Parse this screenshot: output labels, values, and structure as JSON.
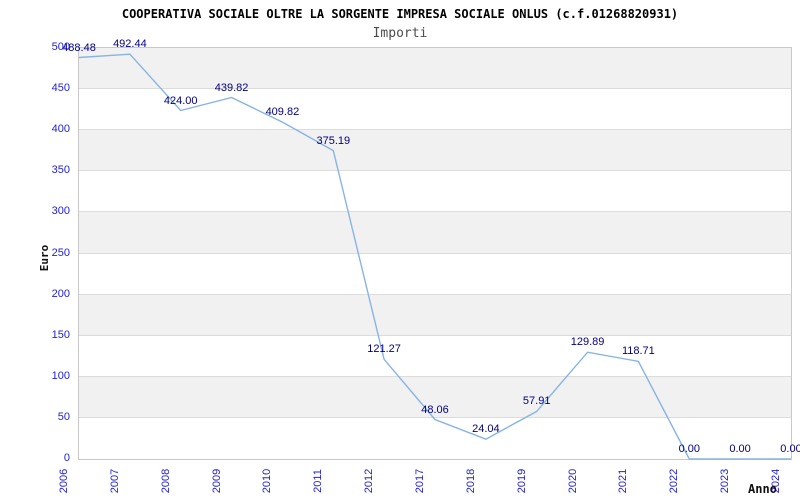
{
  "chart_data": {
    "type": "line",
    "title": "COOPERATIVA SOCIALE OLTRE LA SORGENTE IMPRESA SOCIALE ONLUS (c.f.01268820931)",
    "subtitle": "Importi",
    "xlabel": "Anno",
    "ylabel": "Euro",
    "categories": [
      "2006",
      "2007",
      "2008",
      "2009",
      "2010",
      "2011",
      "2012",
      "2017",
      "2018",
      "2019",
      "2020",
      "2021",
      "2022",
      "2023",
      "2024"
    ],
    "values": [
      488.48,
      492.44,
      424.0,
      439.82,
      409.82,
      375.19,
      121.27,
      48.06,
      24.04,
      57.91,
      129.89,
      118.71,
      0.0,
      0.0,
      0.0
    ],
    "value_labels": [
      "488.48",
      "492.44",
      "424.00",
      "439.82",
      "409.82",
      "375.19",
      "121.27",
      "48.06",
      "24.04",
      "57.91",
      "129.89",
      "118.71",
      "0.00",
      "0.00",
      "0.00"
    ],
    "ylim": [
      0,
      500
    ],
    "ytick_step": 50,
    "yticks": [
      0,
      50,
      100,
      150,
      200,
      250,
      300,
      350,
      400,
      450,
      500
    ],
    "grid": "horizontal-bands",
    "legend": "none",
    "colors": {
      "line": "#88b4e4",
      "tick_label": "#2323cf",
      "data_label": "#000080",
      "band_gray": "#f1f1f1",
      "band_white": "#ffffff",
      "grid_line": "#dcdcdc",
      "plot_border": "#c8c8c8",
      "title": "#000000",
      "subtitle": "#4d4d4d",
      "axis_label": "#111111"
    }
  }
}
